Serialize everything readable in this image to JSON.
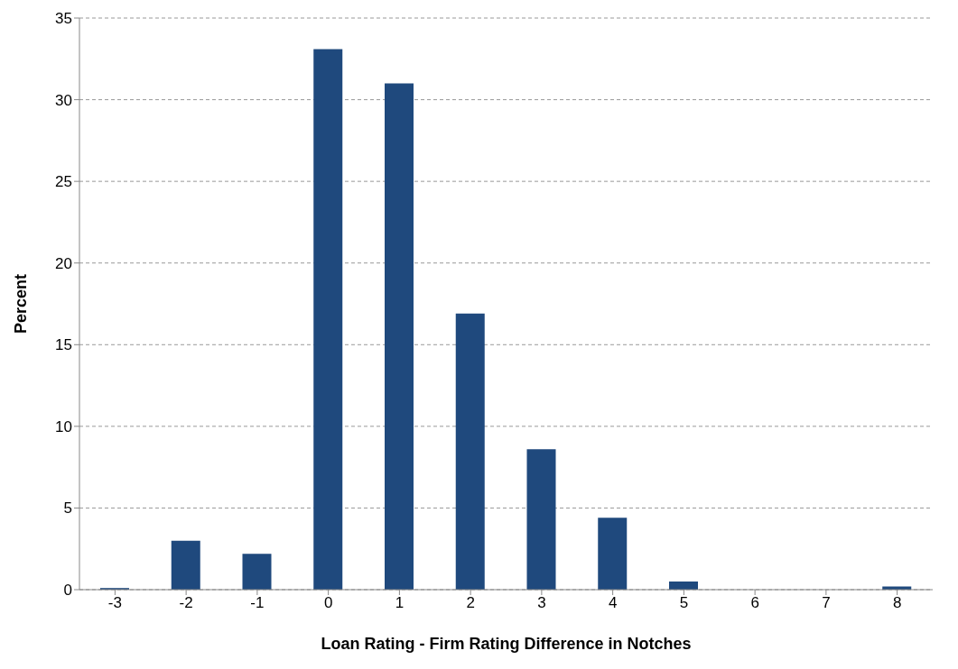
{
  "chart_data": {
    "type": "bar",
    "xlabel": "Loan Rating - Firm Rating Difference in Notches",
    "ylabel": "Percent",
    "categories": [
      "-3",
      "-2",
      "-1",
      "0",
      "1",
      "2",
      "3",
      "4",
      "5",
      "6",
      "7",
      "8"
    ],
    "values": [
      0.1,
      3.0,
      2.2,
      33.1,
      31.0,
      16.9,
      8.6,
      4.4,
      0.5,
      0,
      0,
      0.2
    ],
    "color": "#1f497d",
    "ylim": [
      0,
      35
    ],
    "yticks": [
      0,
      5,
      10,
      15,
      20,
      25,
      30,
      35
    ],
    "grid": "y",
    "legend": false
  }
}
